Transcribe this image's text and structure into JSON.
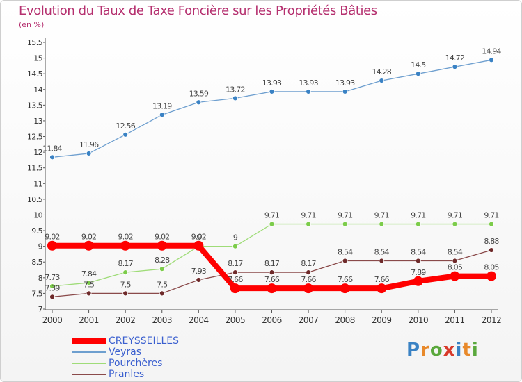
{
  "chart_data": {
    "type": "line",
    "title": "Evolution du Taux de Taxe Foncière sur les Propriétés Bâties",
    "ylabel": "(en %)",
    "xlabel": "",
    "categories": [
      "2000",
      "2001",
      "2002",
      "2003",
      "2004",
      "2005",
      "2006",
      "2007",
      "2008",
      "2009",
      "2010",
      "2011",
      "2012"
    ],
    "ylim": [
      7,
      15.5
    ],
    "yticks": [
      "7",
      "7.5",
      "8",
      "8.5",
      "9",
      "9.5",
      "10",
      "10.5",
      "11",
      "11.5",
      "12",
      "12.5",
      "13",
      "13.5",
      "14",
      "14.5",
      "15",
      "15.5"
    ],
    "grid": false,
    "legend_position": "bottom-left",
    "series": [
      {
        "name": "Veyras",
        "color": "#6e9fcf",
        "marker": "#3a82c4",
        "values": [
          11.84,
          11.96,
          12.56,
          13.19,
          13.59,
          13.72,
          13.93,
          13.93,
          13.93,
          14.28,
          14.5,
          14.72,
          14.94
        ],
        "labels": [
          "11.84",
          "11.96",
          "12.56",
          "13.19",
          "13.59",
          "13.72",
          "13.93",
          "13.93",
          "13.93",
          "14.28",
          "14.5",
          "14.72",
          "14.94"
        ]
      },
      {
        "name": "Pourchères",
        "color": "#9fdc78",
        "marker": "#7ccc4a",
        "values": [
          7.73,
          7.84,
          8.17,
          8.28,
          9,
          9,
          9.71,
          9.71,
          9.71,
          9.71,
          9.71,
          9.71,
          9.71
        ],
        "labels": [
          "7.73",
          "7.84",
          "8.17",
          "8.28",
          "9",
          "9",
          "9.71",
          "9.71",
          "9.71",
          "9.71",
          "9.71",
          "9.71",
          "9.71"
        ]
      },
      {
        "name": "Pranles",
        "color": "#8a4a4a",
        "marker": "#6e2a2a",
        "values": [
          7.39,
          7.5,
          7.5,
          7.5,
          7.93,
          8.17,
          8.17,
          8.17,
          8.54,
          8.54,
          8.54,
          8.54,
          8.88
        ],
        "labels": [
          "7.39",
          "7.5",
          "7.5",
          "7.5",
          "7.93",
          "8.17",
          "8.17",
          "8.17",
          "8.54",
          "8.54",
          "8.54",
          "8.54",
          "8.88"
        ]
      },
      {
        "name": "CREYSSEILLES",
        "color": "#ff0000",
        "marker": "#ff0000",
        "values": [
          9.02,
          9.02,
          9.02,
          9.02,
          9.02,
          7.66,
          7.66,
          7.66,
          7.66,
          7.66,
          7.89,
          8.05,
          8.05
        ],
        "labels": [
          "9.02",
          "9.02",
          "9.02",
          "9.02",
          "9.02",
          "7.66",
          "7.66",
          "7.66",
          "7.66",
          "7.66",
          "7.89",
          "8.05",
          "8.05"
        ]
      }
    ]
  },
  "legend": {
    "creysseilles": "CREYSSEILLES",
    "veyras": "Veyras",
    "pourcheres": "Pourchères",
    "pranles": "Pranles"
  },
  "logo": {
    "text": "Proxiti",
    "letters": [
      "P",
      "r",
      "o",
      "x",
      "i",
      "t",
      "i"
    ],
    "colors": [
      "#3a82c4",
      "#e8892a",
      "#5aa83c",
      "#d83a2a",
      "#3a82c4",
      "#e8892a",
      "#5aa83c"
    ]
  }
}
